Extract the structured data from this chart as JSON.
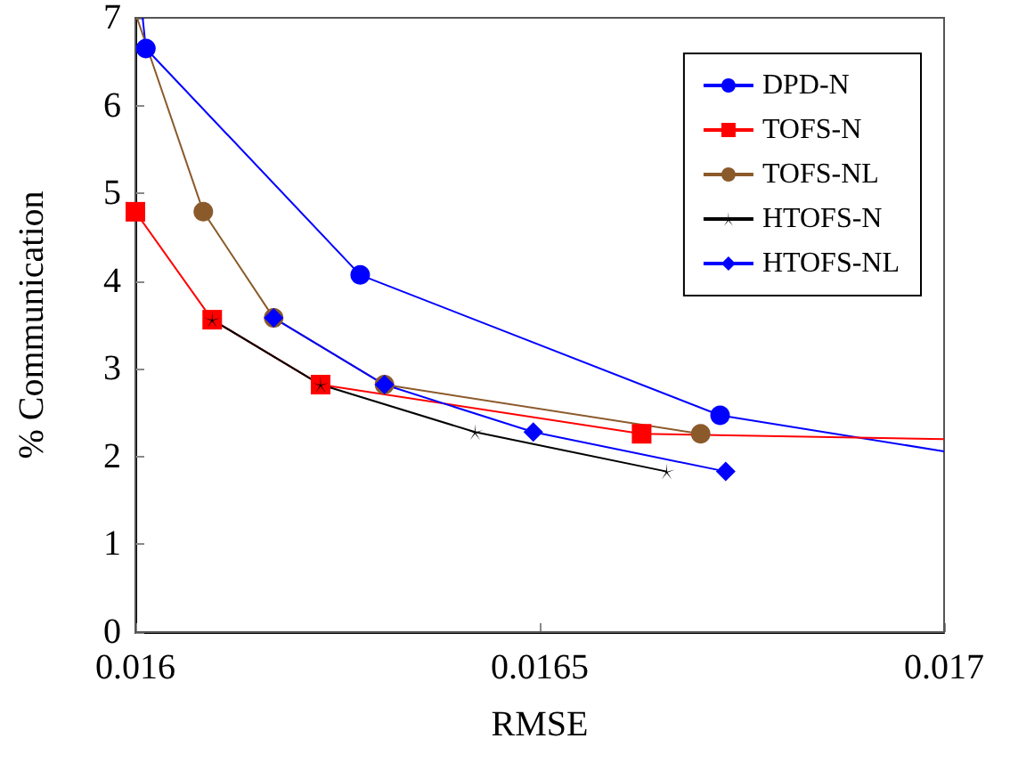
{
  "chart_data": {
    "type": "line",
    "xlabel": "RMSE",
    "ylabel": "% Communication",
    "xlim": [
      0.016,
      0.017
    ],
    "xticks": [
      0.016,
      0.0165,
      0.017
    ],
    "ylim": [
      0,
      7
    ],
    "yticks": [
      0,
      1,
      2,
      3,
      4,
      5,
      6,
      7
    ],
    "grid": false,
    "legend": "top right",
    "line_style": "solid",
    "series": [
      {
        "name": "DPD-N",
        "color": "#0000ff",
        "marker": "circle",
        "x": [
          0.016009,
          0.016013,
          0.016278,
          0.016723,
          0.017
        ],
        "values": [
          7,
          6.65,
          4.07,
          2.47,
          2.06
        ]
      },
      {
        "name": "TOFS-N",
        "color": "#ff0000",
        "marker": "square",
        "x": [
          0.016,
          0.016095,
          0.016229,
          0.016626,
          0.017
        ],
        "values": [
          4.79,
          3.56,
          2.82,
          2.26,
          2.2
        ]
      },
      {
        "name": "TOFS-NL",
        "color": "#8b5a2b",
        "marker": "circle",
        "x": [
          0.016002,
          0.016084,
          0.016171,
          0.016308,
          0.016699
        ],
        "values": [
          7,
          4.79,
          3.58,
          2.82,
          2.26
        ]
      },
      {
        "name": "HTOFS-N",
        "color": "#000000",
        "marker": "star",
        "x": [
          0.016095,
          0.016229,
          0.01642,
          0.016657
        ],
        "values": [
          3.56,
          2.82,
          2.28,
          1.83
        ]
      },
      {
        "name": "HTOFS-NL",
        "color": "#0000ff",
        "marker": "diamond",
        "x": [
          0.016171,
          0.016308,
          0.016492,
          0.01673
        ],
        "values": [
          3.58,
          2.82,
          2.28,
          1.83
        ]
      }
    ]
  }
}
